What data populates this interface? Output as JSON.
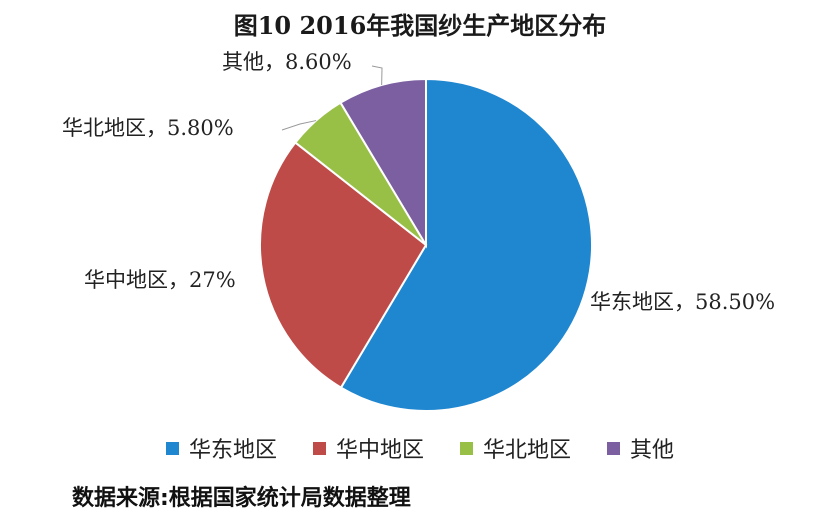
{
  "chart_data": {
    "type": "pie",
    "title": "图10   2016年我国纱生产地区分布",
    "slices": [
      {
        "name": "华东地区",
        "value": 58.5,
        "label": "华东地区，58.50%",
        "color": "#1f86d0"
      },
      {
        "name": "华中地区",
        "value": 27.0,
        "label": "华中地区，27%",
        "color": "#be4b48"
      },
      {
        "name": "华北地区",
        "value": 5.8,
        "label": "华北地区，5.80%",
        "color": "#98c047"
      },
      {
        "name": "其他",
        "value": 8.6,
        "label": "其他，8.60%",
        "color": "#7b5fa0"
      }
    ],
    "legend_position": "bottom"
  },
  "source_note": "数据来源:根据国家统计局数据整理"
}
